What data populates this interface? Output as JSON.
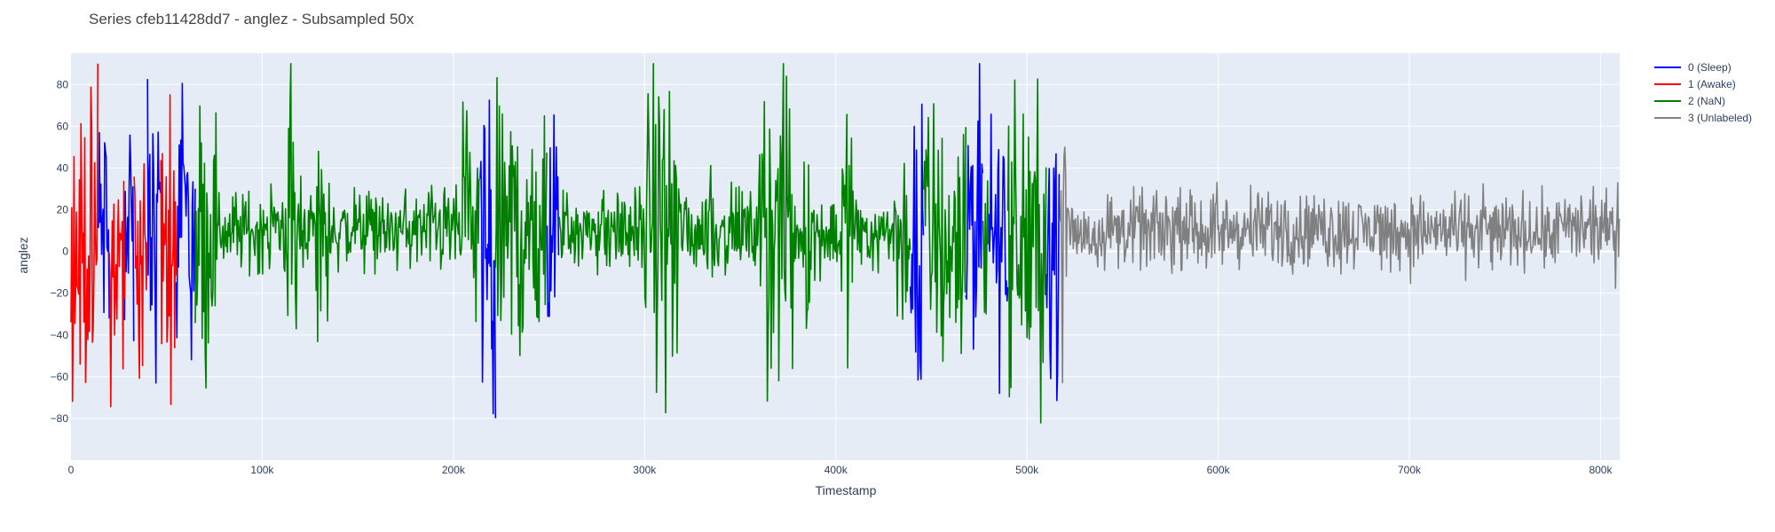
{
  "title": "Series cfeb11428dd7 - anglez - Subsampled 50x",
  "chart_data": {
    "type": "line",
    "title": "Series cfeb11428dd7 - anglez - Subsampled 50x",
    "xlabel": "Timestamp",
    "ylabel": "anglez",
    "xlim": [
      0,
      810000
    ],
    "ylim": [
      -100,
      95
    ],
    "x_ticks": [
      0,
      100000,
      200000,
      300000,
      400000,
      500000,
      600000,
      700000,
      800000
    ],
    "x_tick_labels": [
      "0",
      "100k",
      "200k",
      "300k",
      "400k",
      "500k",
      "600k",
      "700k",
      "800k"
    ],
    "y_ticks": [
      -80,
      -60,
      -40,
      -20,
      0,
      20,
      40,
      60,
      80
    ],
    "y_tick_labels": [
      "−80",
      "−60",
      "−40",
      "−20",
      "0",
      "20",
      "40",
      "60",
      "80"
    ],
    "grid": true,
    "legend_position": "top-right",
    "sample_step": 400,
    "series": [
      {
        "name": "0 (Sleep)",
        "color": "#0000ff",
        "segments": [
          {
            "x_start": 14000,
            "x_end": 20000,
            "amplitude": 70,
            "center": 10
          },
          {
            "x_start": 28000,
            "x_end": 33000,
            "amplitude": 75,
            "center": 5
          },
          {
            "x_start": 40000,
            "x_end": 47000,
            "amplitude": 75,
            "center": 10
          },
          {
            "x_start": 55000,
            "x_end": 65000,
            "amplitude": 70,
            "center": 10
          },
          {
            "x_start": 214000,
            "x_end": 222000,
            "amplitude": 80,
            "center": 0
          },
          {
            "x_start": 249000,
            "x_end": 255000,
            "amplitude": 75,
            "center": 0
          },
          {
            "x_start": 439000,
            "x_end": 446000,
            "amplitude": 80,
            "center": 5
          },
          {
            "x_start": 468000,
            "x_end": 477000,
            "amplitude": 75,
            "center": 5
          },
          {
            "x_start": 480000,
            "x_end": 490000,
            "amplitude": 70,
            "center": 5
          },
          {
            "x_start": 510000,
            "x_end": 517000,
            "amplitude": 70,
            "center": 5
          }
        ]
      },
      {
        "name": "1 (Awake)",
        "color": "#ff0000",
        "segments": [
          {
            "x_start": 0,
            "x_end": 14000,
            "amplitude": 75,
            "center": 0
          },
          {
            "x_start": 20000,
            "x_end": 28000,
            "amplitude": 70,
            "center": -5
          },
          {
            "x_start": 33000,
            "x_end": 40000,
            "amplitude": 70,
            "center": -5
          },
          {
            "x_start": 47000,
            "x_end": 55000,
            "amplitude": 70,
            "center": 5
          }
        ]
      },
      {
        "name": "2 (NaN)",
        "color": "#008000",
        "segments": [
          {
            "x_start": 65000,
            "x_end": 214000,
            "amplitude": 22,
            "center": 10
          },
          {
            "x_start": 222000,
            "x_end": 249000,
            "amplitude": 45,
            "center": 10
          },
          {
            "x_start": 255000,
            "x_end": 439000,
            "amplitude": 22,
            "center": 10
          },
          {
            "x_start": 446000,
            "x_end": 468000,
            "amplitude": 50,
            "center": 5
          },
          {
            "x_start": 477000,
            "x_end": 480000,
            "amplitude": 50,
            "center": 5
          },
          {
            "x_start": 490000,
            "x_end": 510000,
            "amplitude": 45,
            "center": 5
          }
        ],
        "bursts": [
          {
            "x_start": 65000,
            "x_end": 76000,
            "amplitude": 75
          },
          {
            "x_start": 112000,
            "x_end": 118000,
            "amplitude": 80
          },
          {
            "x_start": 128000,
            "x_end": 136000,
            "amplitude": 65
          },
          {
            "x_start": 205000,
            "x_end": 214000,
            "amplitude": 70
          },
          {
            "x_start": 222000,
            "x_end": 249000,
            "amplitude": 70
          },
          {
            "x_start": 300000,
            "x_end": 318000,
            "amplitude": 75
          },
          {
            "x_start": 333000,
            "x_end": 336000,
            "amplitude": 50
          },
          {
            "x_start": 360000,
            "x_end": 378000,
            "amplitude": 80
          },
          {
            "x_start": 383000,
            "x_end": 387000,
            "amplitude": 65
          },
          {
            "x_start": 403000,
            "x_end": 409000,
            "amplitude": 60
          },
          {
            "x_start": 432000,
            "x_end": 439000,
            "amplitude": 55
          },
          {
            "x_start": 446000,
            "x_end": 468000,
            "amplitude": 80
          },
          {
            "x_start": 490000,
            "x_end": 510000,
            "amplitude": 75
          }
        ]
      },
      {
        "name": "3 (Unlabeled)",
        "color": "#808080",
        "segments": [
          {
            "x_start": 517000,
            "x_end": 810000,
            "amplitude": 20,
            "center": 10
          }
        ],
        "bursts": [
          {
            "x_start": 517000,
            "x_end": 521000,
            "amplitude": 80
          }
        ]
      }
    ]
  }
}
